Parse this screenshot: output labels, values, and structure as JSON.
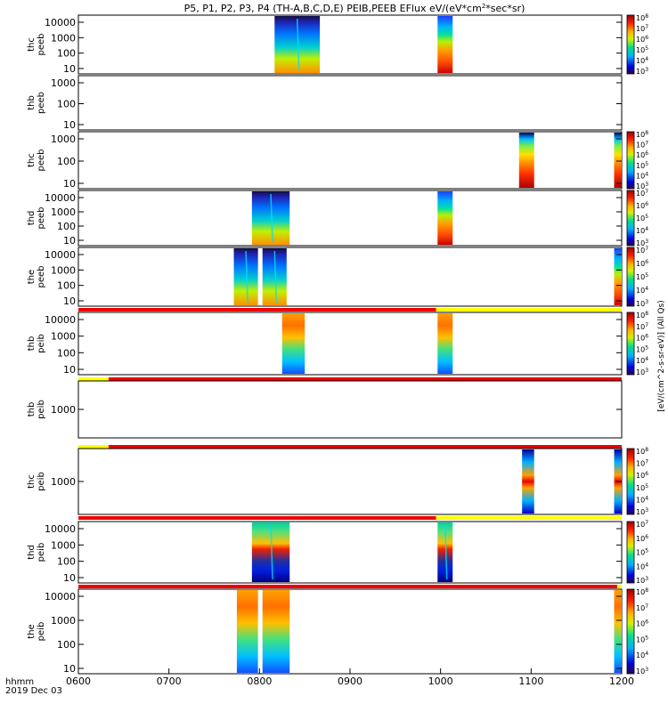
{
  "chart_data": {
    "type": "heatmap",
    "title": "P5, P1, P2, P3, P4 (TH-A,B,C,D,E) PEIB,PEEB EFlux eV/(eV*cm^2*sec*sr)",
    "colorbar_label": "[eV/(cm^2-s-sr-eV)] (All Qs)",
    "x_ticks": [
      "0600",
      "0700",
      "0800",
      "0900",
      "1000",
      "1100",
      "1200"
    ],
    "x_label_lines": [
      "hhmm",
      "2019 Dec 03"
    ],
    "x_range_hours": [
      6,
      12
    ],
    "panels": [
      {
        "label": "thc peeb",
        "label_lines": [
          "thc",
          "peeb"
        ],
        "y_ticks": [
          "10000",
          "1000",
          "100",
          "10"
        ],
        "cbar_ticks": [
          "10^8",
          "10^7",
          "10^6",
          "10^5",
          "10^4",
          "10^3"
        ],
        "blocks": [
          {
            "start": "0810",
            "end": "0840",
            "profile": "spiky"
          },
          {
            "start": "0958",
            "end": "1008",
            "profile": "peeb"
          }
        ]
      },
      {
        "label": "thb peeb",
        "label_lines": [
          "thb",
          "peeb"
        ],
        "y_ticks": [
          "1000",
          "100",
          "10"
        ],
        "cbar_ticks": [],
        "blocks": []
      },
      {
        "label": "thc peeb",
        "label_lines": [
          "thc",
          "peeb"
        ],
        "y_ticks": [
          "1000",
          "100",
          "10"
        ],
        "cbar_ticks": [
          "10^8",
          "10^7",
          "10^6",
          "10^5",
          "10^4",
          "10^3"
        ],
        "blocks": [
          {
            "start": "1052",
            "end": "1102",
            "profile": "peeb_strong"
          },
          {
            "start": "1155",
            "end": "1200",
            "profile": "peeb_strong"
          }
        ]
      },
      {
        "label": "thd peeb",
        "label_lines": [
          "thd",
          "peeb"
        ],
        "y_ticks": [
          "10000",
          "1000",
          "100",
          "10"
        ],
        "cbar_ticks": [
          "10^7",
          "10^6",
          "10^5",
          "10^4",
          "10^3"
        ],
        "blocks": [
          {
            "start": "0755",
            "end": "0820",
            "profile": "spiky"
          },
          {
            "start": "0958",
            "end": "1008",
            "profile": "peeb"
          }
        ]
      },
      {
        "label": "the peeb",
        "label_lines": [
          "the",
          "peeb"
        ],
        "y_ticks": [
          "10000",
          "1000",
          "100",
          "10"
        ],
        "cbar_ticks": [
          "10^7",
          "10^6",
          "10^5",
          "10^4",
          "10^3"
        ],
        "blocks": [
          {
            "start": "0743",
            "end": "0759",
            "profile": "spiky"
          },
          {
            "start": "0802",
            "end": "0818",
            "profile": "spiky"
          },
          {
            "start": "1155",
            "end": "1200",
            "profile": "peeb"
          }
        ],
        "bar": [
          {
            "start": "0600",
            "end": "0957",
            "color": "#ee0000"
          },
          {
            "start": "0957",
            "end": "1200",
            "color": "#ffff00"
          }
        ]
      },
      {
        "label": "thb peib",
        "label_lines": [
          "thb",
          "peib"
        ],
        "y_ticks": [
          "10000",
          "1000",
          "100",
          "10"
        ],
        "cbar_ticks": [
          "10^8",
          "10^7",
          "10^6",
          "10^5",
          "10^4",
          "10^3"
        ],
        "blocks": [
          {
            "start": "0815",
            "end": "0830",
            "profile": "peib"
          },
          {
            "start": "0958",
            "end": "1008",
            "profile": "peib"
          }
        ],
        "bar": [
          {
            "start": "0600",
            "end": "0620",
            "color": "#ffff00"
          },
          {
            "start": "0620",
            "end": "1200",
            "color": "#ee0000"
          }
        ]
      },
      {
        "label": "thb peib",
        "label_lines": [
          "thb",
          "peib"
        ],
        "y_ticks": [
          "1000"
        ],
        "cbar_ticks": [],
        "blocks": [],
        "bar": [
          {
            "start": "0600",
            "end": "0620",
            "color": "#ffff00"
          },
          {
            "start": "0620",
            "end": "1200",
            "color": "#ee0000"
          }
        ]
      },
      {
        "label": "thc peib",
        "label_lines": [
          "thc",
          "peib"
        ],
        "y_ticks": [
          "1000"
        ],
        "cbar_ticks": [
          "10^8",
          "10^7",
          "10^6",
          "10^5",
          "10^4",
          "10^3"
        ],
        "blocks": [
          {
            "start": "1054",
            "end": "1102",
            "profile": "peib_thc"
          },
          {
            "start": "1155",
            "end": "1200",
            "profile": "peib_thc"
          }
        ],
        "bar": [
          {
            "start": "0600",
            "end": "0957",
            "color": "#ee0000"
          },
          {
            "start": "0957",
            "end": "1200",
            "color": "#ffff00"
          }
        ]
      },
      {
        "label": "thd peib",
        "label_lines": [
          "thd",
          "peib"
        ],
        "y_ticks": [
          "10000",
          "1000",
          "100",
          "10"
        ],
        "cbar_ticks": [
          "10^7",
          "10^6",
          "10^5",
          "10^4",
          "10^3"
        ],
        "blocks": [
          {
            "start": "0755",
            "end": "0820",
            "profile": "peib_thd"
          },
          {
            "start": "0958",
            "end": "1008",
            "profile": "peib_thd"
          }
        ],
        "bar": [
          {
            "start": "0600",
            "end": "1157",
            "color": "#ee0000"
          },
          {
            "start": "1157",
            "end": "1200",
            "color": "#ffff00"
          }
        ]
      },
      {
        "label": "the peib",
        "label_lines": [
          "the",
          "peib"
        ],
        "y_ticks": [
          "10000",
          "1000",
          "100",
          "10"
        ],
        "cbar_ticks": [
          "10^8",
          "10^7",
          "10^6",
          "10^5",
          "10^4",
          "10^3"
        ],
        "blocks": [
          {
            "start": "0745",
            "end": "0759",
            "profile": "peib"
          },
          {
            "start": "0802",
            "end": "0820",
            "profile": "peib"
          },
          {
            "start": "1155",
            "end": "1200",
            "profile": "peib"
          }
        ]
      }
    ]
  }
}
